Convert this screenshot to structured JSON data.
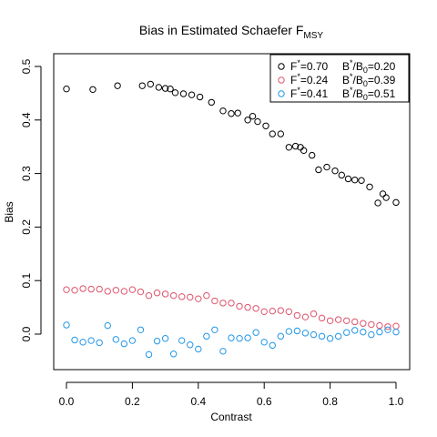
{
  "chart_data": {
    "type": "scatter",
    "title": "Bias in Estimated Schaefer F",
    "title_subscript": "MSY",
    "xlabel": "Contrast",
    "ylabel": "Bias",
    "xlim": [
      0.0,
      1.0
    ],
    "ylim": [
      -0.07,
      0.52
    ],
    "xticks": [
      "0.0",
      "0.2",
      "0.4",
      "0.6",
      "0.8",
      "1.0"
    ],
    "yticks": [
      "0.0",
      "0.1",
      "0.2",
      "0.3",
      "0.4",
      "0.5"
    ],
    "legend_position": "top-right",
    "grid": false,
    "series": [
      {
        "name": "F*=0.70 B*/B0=0.20",
        "legend": {
          "f_label": "F",
          "f_value": "=0.70",
          "b_label": "B",
          "b_sub": "0",
          "b_value": "=0.20"
        },
        "color": "#000000",
        "x": [
          0.0,
          0.08,
          0.155,
          0.23,
          0.255,
          0.28,
          0.3,
          0.315,
          0.33,
          0.355,
          0.38,
          0.405,
          0.44,
          0.475,
          0.5,
          0.52,
          0.55,
          0.565,
          0.58,
          0.605,
          0.625,
          0.65,
          0.675,
          0.695,
          0.71,
          0.72,
          0.745,
          0.765,
          0.79,
          0.815,
          0.835,
          0.855,
          0.875,
          0.895,
          0.92,
          0.945,
          0.96,
          0.97,
          1.0
        ],
        "y": [
          0.458,
          0.457,
          0.464,
          0.464,
          0.467,
          0.461,
          0.459,
          0.458,
          0.451,
          0.449,
          0.447,
          0.443,
          0.433,
          0.417,
          0.412,
          0.413,
          0.4,
          0.407,
          0.397,
          0.389,
          0.374,
          0.374,
          0.349,
          0.351,
          0.349,
          0.343,
          0.334,
          0.307,
          0.312,
          0.305,
          0.297,
          0.29,
          0.288,
          0.287,
          0.275,
          0.245,
          0.262,
          0.255,
          0.246
        ]
      },
      {
        "name": "F*=0.24 B*/B0=0.39",
        "legend": {
          "f_label": "F",
          "f_value": "=0.24",
          "b_label": "B",
          "b_sub": "0",
          "b_value": "=0.39"
        },
        "color": "#DF536B",
        "x": [
          0.0,
          0.025,
          0.05,
          0.075,
          0.1,
          0.125,
          0.15,
          0.175,
          0.2,
          0.225,
          0.25,
          0.275,
          0.3,
          0.325,
          0.35,
          0.375,
          0.4,
          0.425,
          0.45,
          0.475,
          0.5,
          0.525,
          0.55,
          0.575,
          0.6,
          0.625,
          0.65,
          0.675,
          0.7,
          0.725,
          0.75,
          0.775,
          0.8,
          0.825,
          0.85,
          0.875,
          0.9,
          0.925,
          0.95,
          0.975,
          1.0
        ],
        "y": [
          0.083,
          0.082,
          0.085,
          0.084,
          0.084,
          0.08,
          0.082,
          0.08,
          0.083,
          0.079,
          0.072,
          0.077,
          0.075,
          0.072,
          0.07,
          0.069,
          0.066,
          0.072,
          0.062,
          0.058,
          0.058,
          0.052,
          0.05,
          0.048,
          0.042,
          0.043,
          0.044,
          0.042,
          0.035,
          0.032,
          0.038,
          0.03,
          0.025,
          0.027,
          0.025,
          0.023,
          0.02,
          0.018,
          0.016,
          0.014,
          0.015
        ]
      },
      {
        "name": "F*=0.41 B*/B0=0.51",
        "legend": {
          "f_label": "F",
          "f_value": "=0.41",
          "b_label": "B",
          "b_sub": "0",
          "b_value": "=0.51"
        },
        "color": "#2297E6",
        "x": [
          0.0,
          0.025,
          0.05,
          0.075,
          0.1,
          0.125,
          0.15,
          0.175,
          0.2,
          0.225,
          0.25,
          0.275,
          0.3,
          0.325,
          0.35,
          0.375,
          0.4,
          0.425,
          0.45,
          0.475,
          0.5,
          0.525,
          0.55,
          0.575,
          0.6,
          0.625,
          0.65,
          0.675,
          0.7,
          0.725,
          0.75,
          0.775,
          0.8,
          0.825,
          0.85,
          0.875,
          0.9,
          0.925,
          0.95,
          0.975,
          1.0
        ],
        "y": [
          0.017,
          -0.011,
          -0.015,
          -0.012,
          -0.016,
          0.016,
          -0.01,
          -0.018,
          -0.012,
          0.008,
          -0.038,
          -0.013,
          -0.008,
          -0.037,
          -0.012,
          -0.02,
          -0.028,
          -0.004,
          0.008,
          -0.032,
          -0.007,
          -0.008,
          -0.007,
          0.003,
          -0.015,
          -0.021,
          -0.004,
          0.005,
          0.006,
          0.002,
          -0.001,
          -0.004,
          -0.008,
          -0.004,
          0.003,
          0.007,
          0.004,
          -0.001,
          0.004,
          0.008,
          0.004
        ]
      }
    ]
  }
}
